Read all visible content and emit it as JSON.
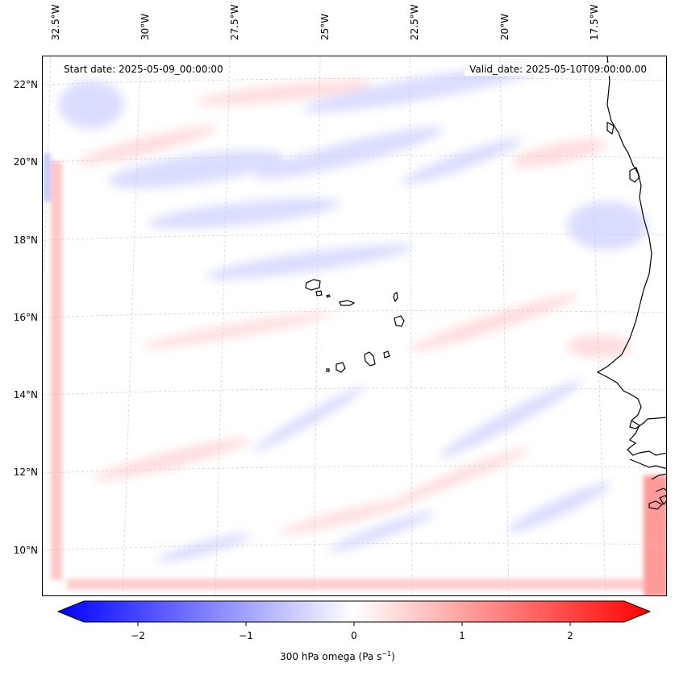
{
  "figure": {
    "start_date": "Start date: 2025-05-09_00:00:00",
    "valid_date": "Valid_date: 2025-05-10T09:00:00.00"
  },
  "map": {
    "longitude_labels": [
      "32.5°W",
      "30°W",
      "27.5°W",
      "25°W",
      "22.5°W",
      "20°W",
      "17.5°W"
    ],
    "latitude_labels": [
      "22°N",
      "20°N",
      "18°N",
      "16°N",
      "14°N",
      "12°N",
      "10°N"
    ],
    "field": "300 hPa omega",
    "features": [
      "Cape Verde islands",
      "West African coastline"
    ]
  },
  "colorbar": {
    "label_prefix": "300 hPa omega (Pa s",
    "label_exp": "−1",
    "label_suffix": ")",
    "ticks": [
      "−2",
      "−1",
      "0",
      "1",
      "2"
    ],
    "tick_values": [
      -2,
      -1,
      0,
      1,
      2
    ],
    "range": [
      -2.5,
      2.5
    ],
    "colormap": "bwr",
    "low_color": "#0000ff",
    "mid_color": "#ffffff",
    "high_color": "#ff0000"
  }
}
